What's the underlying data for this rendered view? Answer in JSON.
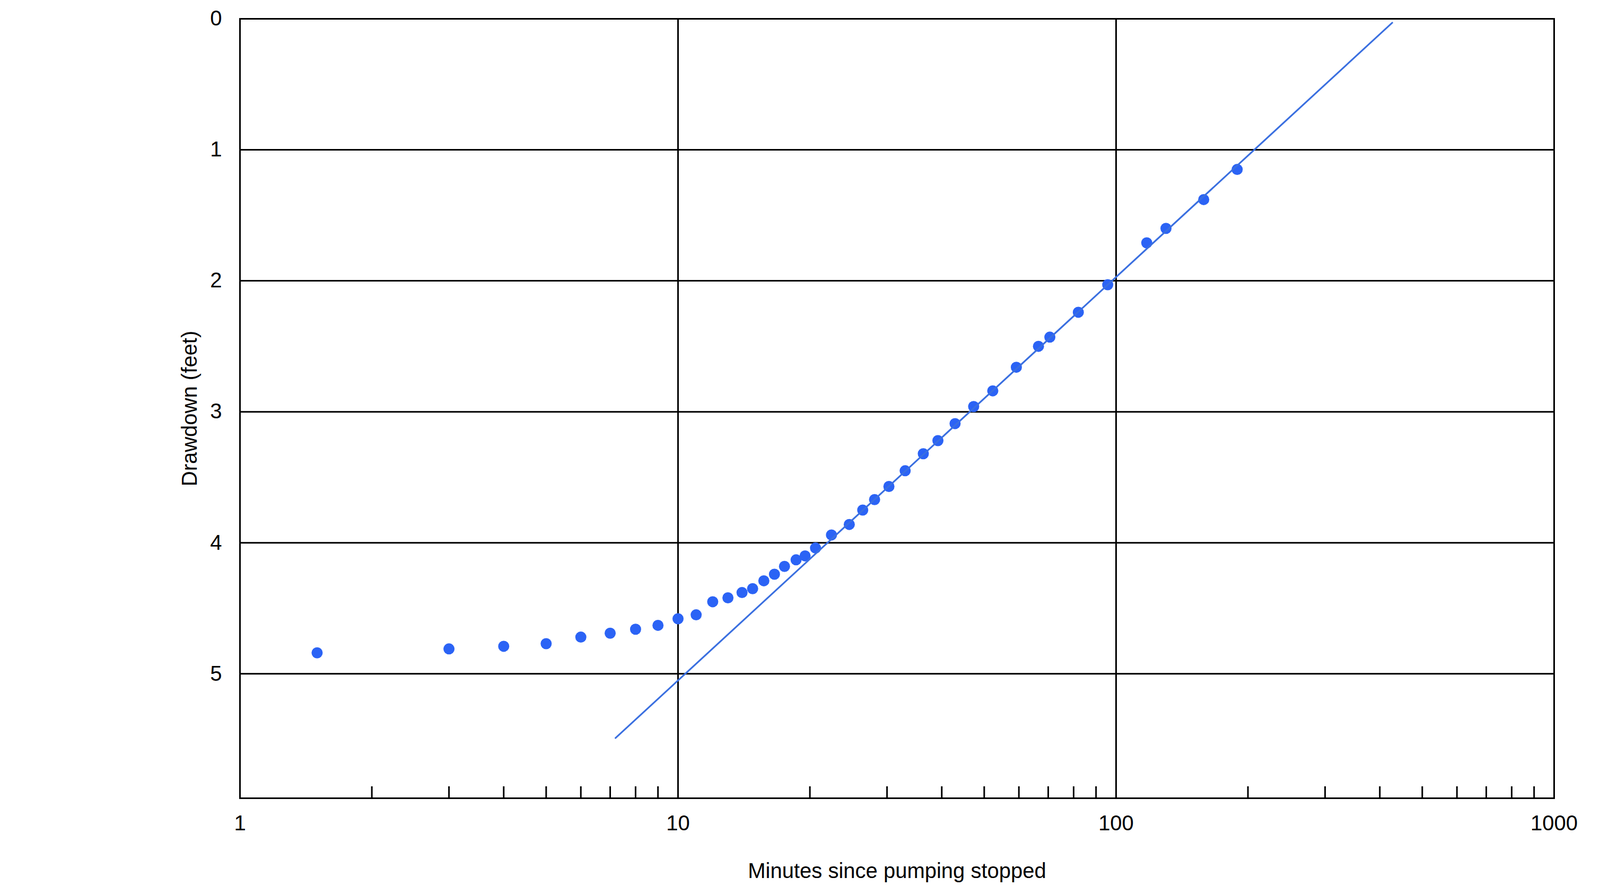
{
  "chart_data": {
    "type": "scatter",
    "x_label": "Minutes since pumping stopped",
    "y_label": "Drawdown (feet)",
    "log": "x",
    "grid": true,
    "xlim": [
      1,
      1000
    ],
    "xticks": [
      1,
      10,
      100,
      1000
    ],
    "x_minor_ticks": [
      2,
      3,
      4,
      5,
      6,
      7,
      8,
      9,
      20,
      30,
      40,
      50,
      60,
      70,
      80,
      90,
      200,
      300,
      400,
      500,
      600,
      700,
      800,
      900
    ],
    "ylim": [
      5.95,
      0
    ],
    "yticks": [
      0,
      1,
      2,
      3,
      4,
      5
    ],
    "series": [
      {
        "type": "scatter",
        "marker": "circle",
        "color": "#2b63f5",
        "x": [
          1.5,
          3,
          4,
          5,
          6,
          7,
          8,
          9,
          10,
          11,
          12,
          13,
          14,
          14.8,
          15.7,
          16.6,
          17.5,
          18.6,
          19.5,
          20.6,
          22.4,
          24.6,
          26.4,
          28.1,
          30.3,
          33.0,
          36.3,
          39.2,
          42.9,
          47.3,
          52.3,
          59.2,
          66.5,
          70.6,
          82.0,
          95.7,
          117.5,
          130,
          158.5,
          189
        ],
        "values": [
          4.84,
          4.81,
          4.79,
          4.77,
          4.72,
          4.69,
          4.66,
          4.63,
          4.58,
          4.55,
          4.45,
          4.42,
          4.38,
          4.35,
          4.29,
          4.24,
          4.18,
          4.13,
          4.1,
          4.04,
          3.94,
          3.86,
          3.75,
          3.67,
          3.57,
          3.45,
          3.32,
          3.22,
          3.09,
          2.96,
          2.84,
          2.66,
          2.5,
          2.43,
          2.24,
          2.03,
          1.71,
          1.6,
          1.38,
          1.15
        ]
      },
      {
        "type": "line",
        "line_style": "solid",
        "color": "#3a6fe0",
        "x": [
          7.2,
          427
        ],
        "values": [
          5.49,
          0.03
        ]
      }
    ]
  }
}
